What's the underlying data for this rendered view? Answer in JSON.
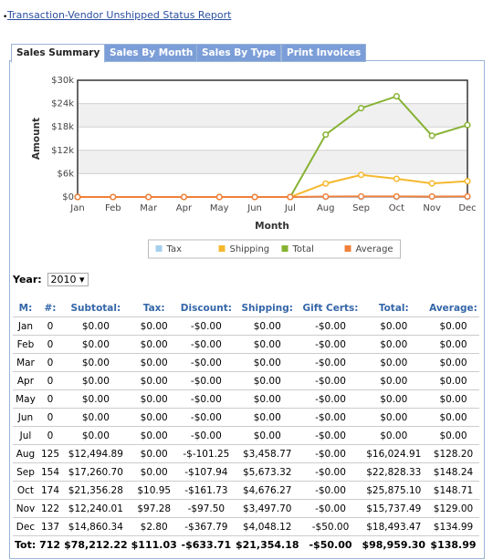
{
  "header": {
    "link": "Transaction-Vendor Unshipped Status Report"
  },
  "tabs": [
    "Sales Summary",
    "Sales By Month",
    "Sales By Type",
    "Print Invoices"
  ],
  "chart_data": {
    "type": "line",
    "x_label": "Month",
    "y_label": "Amount",
    "categories": [
      "Jan",
      "Feb",
      "Mar",
      "Apr",
      "May",
      "Jun",
      "Jul",
      "Aug",
      "Sep",
      "Oct",
      "Nov",
      "Dec"
    ],
    "series": [
      {
        "name": "Tax",
        "color": "#a6cfee",
        "values": [
          0,
          0,
          0,
          0,
          0,
          0,
          0,
          0,
          0,
          10.95,
          97.28,
          2.8
        ]
      },
      {
        "name": "Shipping",
        "color": "#f5b82e",
        "values": [
          0,
          0,
          0,
          0,
          0,
          0,
          0,
          3458.77,
          5673.32,
          4676.27,
          3497.7,
          4048.12
        ]
      },
      {
        "name": "Total",
        "color": "#86b232",
        "values": [
          0,
          0,
          0,
          0,
          0,
          0,
          0,
          16024.91,
          22828.33,
          25875.1,
          15737.49,
          18493.47
        ]
      },
      {
        "name": "Average",
        "color": "#f0803c",
        "values": [
          0,
          0,
          0,
          0,
          0,
          0,
          0,
          128.2,
          148.24,
          148.71,
          129.0,
          134.99
        ]
      }
    ],
    "ylim": [
      0,
      30000
    ],
    "yticks": [
      {
        "value": 0,
        "label": "$0"
      },
      {
        "value": 6000,
        "label": "$6k"
      },
      {
        "value": 12000,
        "label": "$12k"
      },
      {
        "value": 18000,
        "label": "$18k"
      },
      {
        "value": 24000,
        "label": "$24k"
      },
      {
        "value": 30000,
        "label": "$30k"
      }
    ],
    "grid": true,
    "legend": "bottom"
  },
  "year_selector": {
    "label": "Year:",
    "value": "2010"
  },
  "table": {
    "columns": [
      "M:",
      "#:",
      "Subtotal:",
      "Tax:",
      "Discount:",
      "Shipping:",
      "Gift Certs:",
      "Total:",
      "Average:"
    ],
    "rows": [
      [
        "Jan",
        "0",
        "$0.00",
        "$0.00",
        "-$0.00",
        "$0.00",
        "-$0.00",
        "$0.00",
        "$0.00"
      ],
      [
        "Feb",
        "0",
        "$0.00",
        "$0.00",
        "-$0.00",
        "$0.00",
        "-$0.00",
        "$0.00",
        "$0.00"
      ],
      [
        "Mar",
        "0",
        "$0.00",
        "$0.00",
        "-$0.00",
        "$0.00",
        "-$0.00",
        "$0.00",
        "$0.00"
      ],
      [
        "Apr",
        "0",
        "$0.00",
        "$0.00",
        "-$0.00",
        "$0.00",
        "-$0.00",
        "$0.00",
        "$0.00"
      ],
      [
        "May",
        "0",
        "$0.00",
        "$0.00",
        "-$0.00",
        "$0.00",
        "-$0.00",
        "$0.00",
        "$0.00"
      ],
      [
        "Jun",
        "0",
        "$0.00",
        "$0.00",
        "-$0.00",
        "$0.00",
        "-$0.00",
        "$0.00",
        "$0.00"
      ],
      [
        "Jul",
        "0",
        "$0.00",
        "$0.00",
        "-$0.00",
        "$0.00",
        "-$0.00",
        "$0.00",
        "$0.00"
      ],
      [
        "Aug",
        "125",
        "$12,494.89",
        "$0.00",
        "-$-101.25",
        "$3,458.77",
        "-$0.00",
        "$16,024.91",
        "$128.20"
      ],
      [
        "Sep",
        "154",
        "$17,260.70",
        "$0.00",
        "-$107.94",
        "$5,673.32",
        "-$0.00",
        "$22,828.33",
        "$148.24"
      ],
      [
        "Oct",
        "174",
        "$21,356.28",
        "$10.95",
        "-$161.73",
        "$4,676.27",
        "-$0.00",
        "$25,875.10",
        "$148.71"
      ],
      [
        "Nov",
        "122",
        "$12,240.01",
        "$97.28",
        "-$97.50",
        "$3,497.70",
        "-$0.00",
        "$15,737.49",
        "$129.00"
      ],
      [
        "Dec",
        "137",
        "$14,860.34",
        "$2.80",
        "-$367.79",
        "$4,048.12",
        "-$50.00",
        "$18,493.47",
        "$134.99"
      ]
    ],
    "total": [
      "Tot: 712",
      "$78,212.22",
      "$111.03",
      "-$633.71",
      "$21,354.18",
      "-$50.00",
      "$98,959.30",
      "$138.99"
    ]
  }
}
